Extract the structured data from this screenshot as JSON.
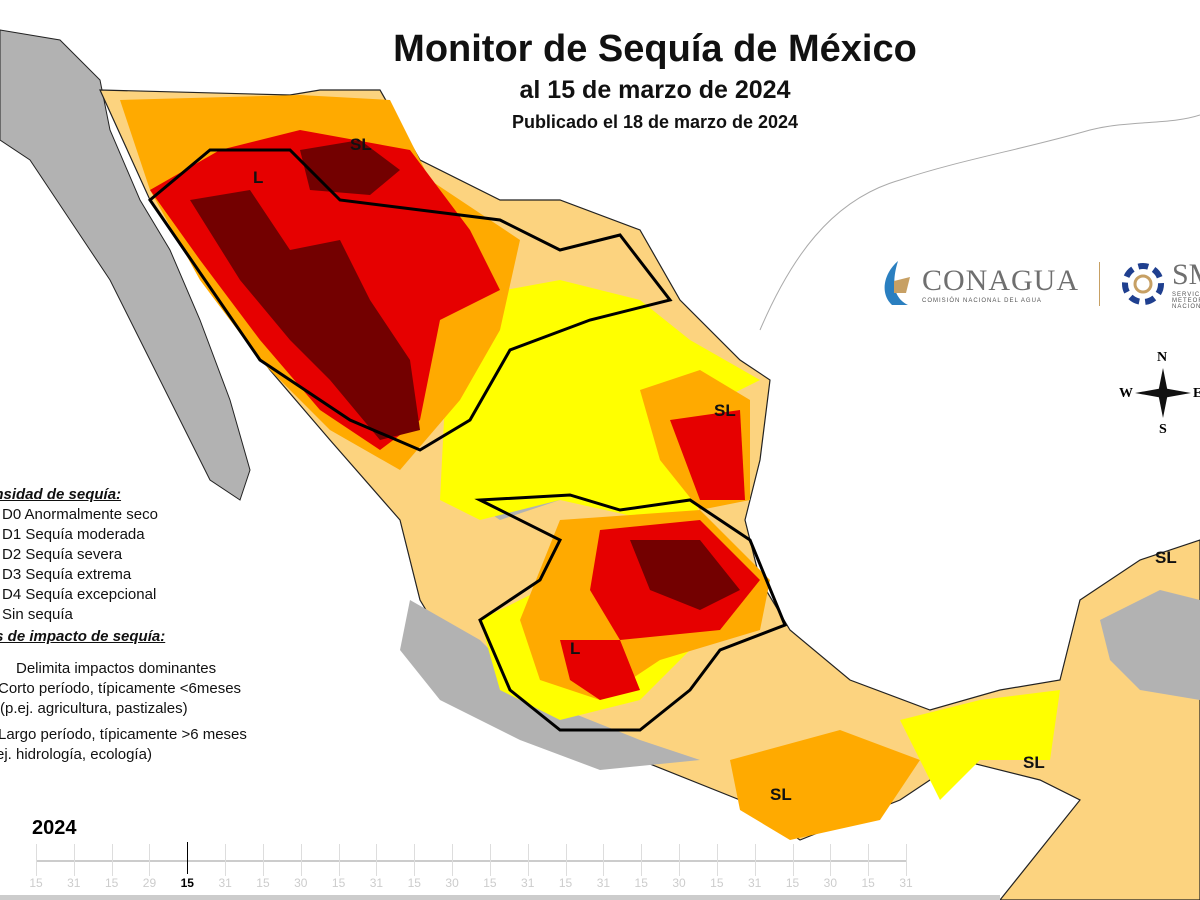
{
  "title": "Monitor de Sequía de México",
  "subtitle": "al 15 de marzo de 2024",
  "published": "Publicado el 18 de marzo de 2024",
  "colors": {
    "D0": "#ffff00",
    "D1": "#fcd37f",
    "D2": "#ffaa00",
    "D3": "#e60000",
    "D4": "#730000",
    "none": "#b2b2b2",
    "us": "#c8c8c8"
  },
  "legend": {
    "intensity_header": "ensidad de sequía:",
    "intensity_items": [
      {
        "code": "D0",
        "label": "D0 Anormalmente seco"
      },
      {
        "code": "D1",
        "label": "D1 Sequía moderada"
      },
      {
        "code": "D2",
        "label": "D2 Sequía severa"
      },
      {
        "code": "D3",
        "label": "D3 Sequía extrema"
      },
      {
        "code": "D4",
        "label": "D4 Sequía excepcional"
      },
      {
        "code": "none",
        "label": "Sin sequía"
      }
    ],
    "impact_header": "os de impacto de sequía:",
    "impact_items": [
      "Delimita impactos dominantes",
      "Corto período, típicamente <6meses",
      "(p.ej. agricultura, pastizales)",
      "Largo período, típicamente >6 meses",
      "ej. hidrología, ecología)"
    ]
  },
  "map_labels": [
    "SL",
    "L",
    "SL",
    "L",
    "SL",
    "SL",
    "SL"
  ],
  "logos": {
    "conagua": "CONAGUA",
    "conagua_sub": "COMISIÓN NACIONAL DEL AGUA",
    "smn": "SM",
    "smn_sub": "SERVICIO METEOROLÓGICO NACIONAL"
  },
  "compass": {
    "n": "N",
    "s": "S",
    "e": "E",
    "w": "W"
  },
  "timeline": {
    "year": "2024",
    "labels": [
      "15",
      "31",
      "15",
      "29",
      "15",
      "31",
      "15",
      "30",
      "15",
      "31",
      "15",
      "30",
      "15",
      "31",
      "15",
      "31",
      "15",
      "30",
      "15",
      "31",
      "15",
      "30",
      "15",
      "31"
    ],
    "current_index": 4
  }
}
